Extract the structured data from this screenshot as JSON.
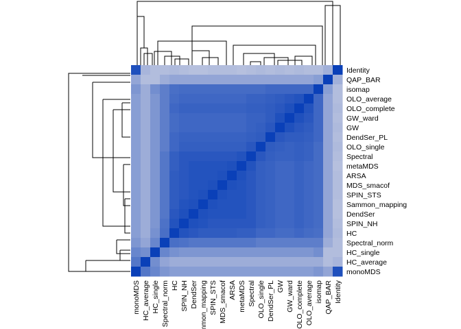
{
  "chart_data": {
    "type": "heatmap",
    "title": "",
    "xlabel": "",
    "ylabel": "",
    "row_labels_top_to_bottom": [
      "Identity",
      "QAP_BAR",
      "isomap",
      "OLO_average",
      "OLO_complete",
      "GW_ward",
      "GW",
      "DendSer_PL",
      "OLO_single",
      "Spectral",
      "metaMDS",
      "ARSA",
      "MDS_smacof",
      "SPIN_STS",
      "Sammon_mapping",
      "DendSer",
      "SPIN_NH",
      "HC",
      "Spectral_norm",
      "HC_single",
      "HC_average",
      "monoMDS"
    ],
    "col_labels_left_to_right": [
      "monoMDS",
      "HC_average",
      "HC_single",
      "Spectral_norm",
      "HC",
      "SPIN_NH",
      "DendSer",
      "Sammon_mapping",
      "SPIN_STS",
      "MDS_smacof",
      "ARSA",
      "metaMDS",
      "Spectral",
      "OLO_single",
      "DendSer_PL",
      "GW",
      "GW_ward",
      "OLO_complete",
      "OLO_average",
      "isomap",
      "QAP_BAR",
      "Identity"
    ],
    "col_labels_as_printed": [
      "monoMDS",
      "HC_average",
      "HC_single",
      "Spectral_norm",
      "HC",
      "SPIN_NH",
      "DendSer",
      "ammon_mapping",
      "SPIN_STS",
      "MDS_smacof",
      "ARSA",
      "metaMDS",
      "Spectral",
      "OLO_single",
      "DendSer_PL",
      "GW",
      "GW_ward",
      "OLO_complete",
      "OLO_average",
      "isomap",
      "QAP_BAR",
      "Identity"
    ],
    "color_scale": {
      "low": "#dcdce6",
      "high": "#0a40b8"
    },
    "value_range": [
      0,
      1
    ],
    "values": [
      [
        0.9,
        0.25,
        0.2,
        0.2,
        0.22,
        0.2,
        0.18,
        0.18,
        0.2,
        0.2,
        0.2,
        0.18,
        0.2,
        0.22,
        0.2,
        0.22,
        0.2,
        0.22,
        0.2,
        0.2,
        0.28,
        1.0
      ],
      [
        0.35,
        0.2,
        0.2,
        0.3,
        0.35,
        0.35,
        0.35,
        0.35,
        0.35,
        0.35,
        0.35,
        0.35,
        0.35,
        0.35,
        0.35,
        0.35,
        0.35,
        0.35,
        0.35,
        0.4,
        1.0,
        0.28
      ],
      [
        0.45,
        0.3,
        0.5,
        0.6,
        0.7,
        0.72,
        0.72,
        0.72,
        0.72,
        0.72,
        0.72,
        0.72,
        0.72,
        0.72,
        0.75,
        0.75,
        0.75,
        0.75,
        0.75,
        1.0,
        0.4,
        0.2
      ],
      [
        0.4,
        0.3,
        0.45,
        0.6,
        0.72,
        0.75,
        0.75,
        0.75,
        0.75,
        0.75,
        0.75,
        0.75,
        0.78,
        0.78,
        0.8,
        0.82,
        0.85,
        0.88,
        1.0,
        0.75,
        0.35,
        0.2
      ],
      [
        0.4,
        0.3,
        0.45,
        0.6,
        0.75,
        0.78,
        0.78,
        0.78,
        0.78,
        0.78,
        0.78,
        0.78,
        0.8,
        0.8,
        0.82,
        0.85,
        0.9,
        1.0,
        0.88,
        0.75,
        0.35,
        0.22
      ],
      [
        0.4,
        0.3,
        0.45,
        0.6,
        0.72,
        0.75,
        0.75,
        0.75,
        0.75,
        0.75,
        0.75,
        0.75,
        0.78,
        0.78,
        0.82,
        0.9,
        1.0,
        0.9,
        0.85,
        0.75,
        0.35,
        0.2
      ],
      [
        0.4,
        0.3,
        0.45,
        0.6,
        0.72,
        0.75,
        0.75,
        0.75,
        0.75,
        0.75,
        0.75,
        0.75,
        0.78,
        0.8,
        0.85,
        1.0,
        0.9,
        0.85,
        0.82,
        0.75,
        0.35,
        0.22
      ],
      [
        0.4,
        0.3,
        0.45,
        0.6,
        0.75,
        0.78,
        0.78,
        0.78,
        0.78,
        0.78,
        0.78,
        0.78,
        0.8,
        0.82,
        1.0,
        0.85,
        0.82,
        0.82,
        0.8,
        0.75,
        0.35,
        0.2
      ],
      [
        0.4,
        0.3,
        0.45,
        0.6,
        0.75,
        0.8,
        0.8,
        0.8,
        0.8,
        0.8,
        0.8,
        0.8,
        0.85,
        1.0,
        0.82,
        0.8,
        0.78,
        0.8,
        0.78,
        0.72,
        0.35,
        0.22
      ],
      [
        0.4,
        0.3,
        0.45,
        0.65,
        0.8,
        0.85,
        0.85,
        0.85,
        0.85,
        0.85,
        0.85,
        0.88,
        1.0,
        0.85,
        0.8,
        0.78,
        0.78,
        0.8,
        0.78,
        0.72,
        0.35,
        0.2
      ],
      [
        0.4,
        0.3,
        0.45,
        0.65,
        0.8,
        0.85,
        0.88,
        0.88,
        0.88,
        0.88,
        0.9,
        1.0,
        0.88,
        0.8,
        0.78,
        0.75,
        0.75,
        0.78,
        0.75,
        0.72,
        0.35,
        0.18
      ],
      [
        0.4,
        0.3,
        0.45,
        0.65,
        0.82,
        0.85,
        0.88,
        0.88,
        0.88,
        0.9,
        1.0,
        0.9,
        0.85,
        0.8,
        0.78,
        0.75,
        0.75,
        0.78,
        0.75,
        0.72,
        0.35,
        0.2
      ],
      [
        0.4,
        0.3,
        0.45,
        0.65,
        0.82,
        0.85,
        0.88,
        0.88,
        0.9,
        1.0,
        0.9,
        0.88,
        0.85,
        0.8,
        0.78,
        0.75,
        0.75,
        0.78,
        0.75,
        0.72,
        0.35,
        0.2
      ],
      [
        0.4,
        0.3,
        0.45,
        0.65,
        0.82,
        0.85,
        0.88,
        0.9,
        1.0,
        0.9,
        0.88,
        0.88,
        0.85,
        0.8,
        0.78,
        0.75,
        0.75,
        0.78,
        0.75,
        0.72,
        0.35,
        0.2
      ],
      [
        0.4,
        0.3,
        0.45,
        0.65,
        0.82,
        0.88,
        0.9,
        1.0,
        0.9,
        0.88,
        0.88,
        0.88,
        0.85,
        0.8,
        0.78,
        0.75,
        0.75,
        0.78,
        0.75,
        0.72,
        0.35,
        0.18
      ],
      [
        0.4,
        0.3,
        0.45,
        0.65,
        0.85,
        0.9,
        1.0,
        0.9,
        0.88,
        0.88,
        0.88,
        0.88,
        0.85,
        0.8,
        0.78,
        0.75,
        0.75,
        0.78,
        0.75,
        0.72,
        0.35,
        0.18
      ],
      [
        0.4,
        0.3,
        0.45,
        0.68,
        0.88,
        1.0,
        0.9,
        0.88,
        0.85,
        0.85,
        0.85,
        0.85,
        0.85,
        0.8,
        0.78,
        0.75,
        0.75,
        0.78,
        0.75,
        0.72,
        0.35,
        0.2
      ],
      [
        0.4,
        0.3,
        0.48,
        0.7,
        1.0,
        0.88,
        0.85,
        0.82,
        0.82,
        0.82,
        0.82,
        0.8,
        0.8,
        0.75,
        0.75,
        0.72,
        0.72,
        0.75,
        0.72,
        0.7,
        0.35,
        0.22
      ],
      [
        0.45,
        0.35,
        0.55,
        1.0,
        0.7,
        0.68,
        0.65,
        0.65,
        0.65,
        0.65,
        0.65,
        0.65,
        0.65,
        0.6,
        0.6,
        0.6,
        0.6,
        0.6,
        0.6,
        0.6,
        0.3,
        0.2
      ],
      [
        0.55,
        0.5,
        1.0,
        0.55,
        0.48,
        0.45,
        0.45,
        0.45,
        0.45,
        0.45,
        0.45,
        0.45,
        0.45,
        0.45,
        0.45,
        0.45,
        0.45,
        0.45,
        0.45,
        0.5,
        0.2,
        0.2
      ],
      [
        0.65,
        1.0,
        0.5,
        0.35,
        0.3,
        0.3,
        0.3,
        0.3,
        0.3,
        0.3,
        0.3,
        0.3,
        0.3,
        0.3,
        0.3,
        0.3,
        0.3,
        0.3,
        0.3,
        0.3,
        0.2,
        0.25
      ],
      [
        1.0,
        0.65,
        0.55,
        0.45,
        0.4,
        0.4,
        0.4,
        0.4,
        0.4,
        0.4,
        0.4,
        0.4,
        0.4,
        0.4,
        0.4,
        0.4,
        0.4,
        0.4,
        0.4,
        0.45,
        0.35,
        0.9
      ]
    ]
  }
}
